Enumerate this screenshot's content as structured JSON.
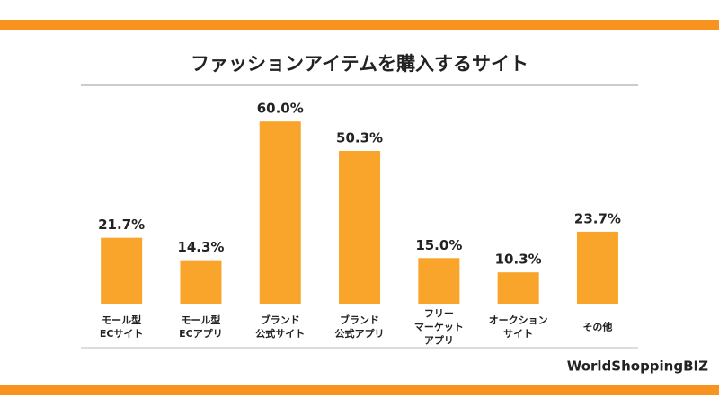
{
  "chart_data": {
    "type": "bar",
    "title": "ファッションアイテムを購入するサイト",
    "categories": [
      [
        "モール型",
        "ECサイト"
      ],
      [
        "モール型",
        "ECアプリ"
      ],
      [
        "ブランド",
        "公式サイト"
      ],
      [
        "ブランド",
        "公式アプリ"
      ],
      [
        "フリー",
        "マーケット",
        "アプリ"
      ],
      [
        "オークション",
        "サイト"
      ],
      [
        "その他"
      ]
    ],
    "values": [
      21.7,
      14.3,
      60.0,
      50.3,
      15.0,
      10.3,
      23.7
    ],
    "value_labels": [
      "21.7%",
      "14.3%",
      "60.0%",
      "50.3%",
      "15.0%",
      "10.3%",
      "23.7%"
    ],
    "color": "#f9a42a"
  },
  "logo": "WorldShoppingBIZ"
}
